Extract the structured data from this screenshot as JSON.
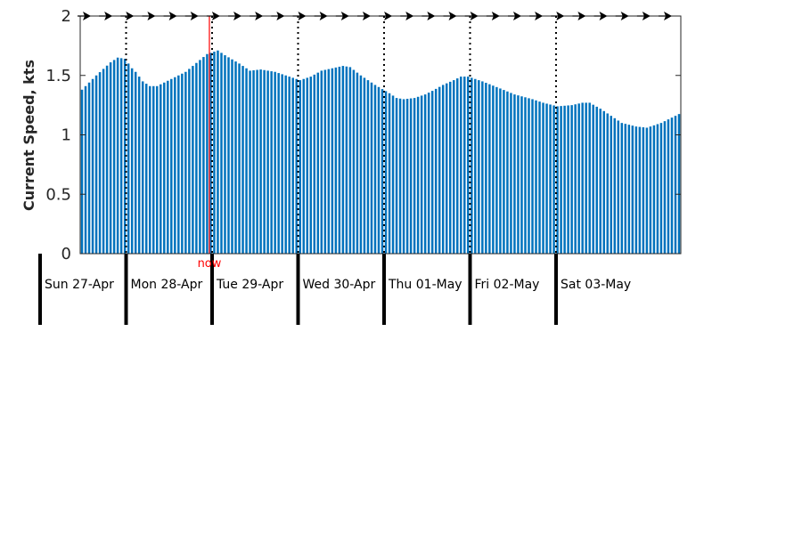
{
  "colors": {
    "bar": "#0072BD",
    "now_line": "#FF0000",
    "axis": "#262626",
    "divider": "#000000",
    "arrow": "#000000"
  },
  "chart_data": {
    "type": "bar",
    "title": "",
    "xlabel": "",
    "ylabel": "Current Speed, kts",
    "ylim": [
      0,
      2
    ],
    "y_ticks": [
      "0",
      "0.5",
      "1",
      "1.5",
      "2"
    ],
    "grid": false,
    "hours_total": 168,
    "now_hour": 47,
    "now_label": "now",
    "days": [
      "Sun 27-Apr",
      "Mon 28-Apr",
      "Tue 29-Apr",
      "Wed 30-Apr",
      "Thu 01-May",
      "Fri 02-May",
      "Sat 03-May"
    ],
    "direction_arrows": 28,
    "keypoints_hour_value": [
      [
        0,
        1.38
      ],
      [
        4,
        1.5
      ],
      [
        8,
        1.61
      ],
      [
        10,
        1.65
      ],
      [
        12,
        1.64
      ],
      [
        13,
        1.6
      ],
      [
        14,
        1.56
      ],
      [
        15,
        1.53
      ],
      [
        17,
        1.45
      ],
      [
        19,
        1.41
      ],
      [
        21,
        1.41
      ],
      [
        23,
        1.44
      ],
      [
        25,
        1.47
      ],
      [
        29,
        1.53
      ],
      [
        31,
        1.58
      ],
      [
        33,
        1.63
      ],
      [
        35,
        1.68
      ],
      [
        37,
        1.7
      ],
      [
        38,
        1.71
      ],
      [
        40,
        1.67
      ],
      [
        44,
        1.6
      ],
      [
        47,
        1.54
      ],
      [
        50,
        1.55
      ],
      [
        54,
        1.53
      ],
      [
        58,
        1.49
      ],
      [
        61,
        1.46
      ],
      [
        64,
        1.49
      ],
      [
        67,
        1.54
      ],
      [
        70,
        1.56
      ],
      [
        73,
        1.58
      ],
      [
        75,
        1.57
      ],
      [
        78,
        1.5
      ],
      [
        82,
        1.42
      ],
      [
        86,
        1.35
      ],
      [
        88,
        1.31
      ],
      [
        90,
        1.3
      ],
      [
        93,
        1.31
      ],
      [
        96,
        1.34
      ],
      [
        98,
        1.37
      ],
      [
        101,
        1.42
      ],
      [
        104,
        1.46
      ],
      [
        106,
        1.49
      ],
      [
        108,
        1.49
      ],
      [
        112,
        1.45
      ],
      [
        117,
        1.39
      ],
      [
        121,
        1.34
      ],
      [
        126,
        1.3
      ],
      [
        129,
        1.27
      ],
      [
        133,
        1.24
      ],
      [
        137,
        1.25
      ],
      [
        140,
        1.27
      ],
      [
        142,
        1.27
      ],
      [
        145,
        1.22
      ],
      [
        148,
        1.16
      ],
      [
        151,
        1.1
      ],
      [
        155,
        1.07
      ],
      [
        158,
        1.06
      ],
      [
        162,
        1.1
      ],
      [
        166,
        1.16
      ],
      [
        170,
        1.22
      ],
      [
        174,
        1.23
      ],
      [
        178,
        1.22
      ],
      [
        182,
        1.27
      ],
      [
        186,
        1.33
      ],
      [
        190,
        1.36
      ],
      [
        192,
        1.36
      ]
    ]
  }
}
